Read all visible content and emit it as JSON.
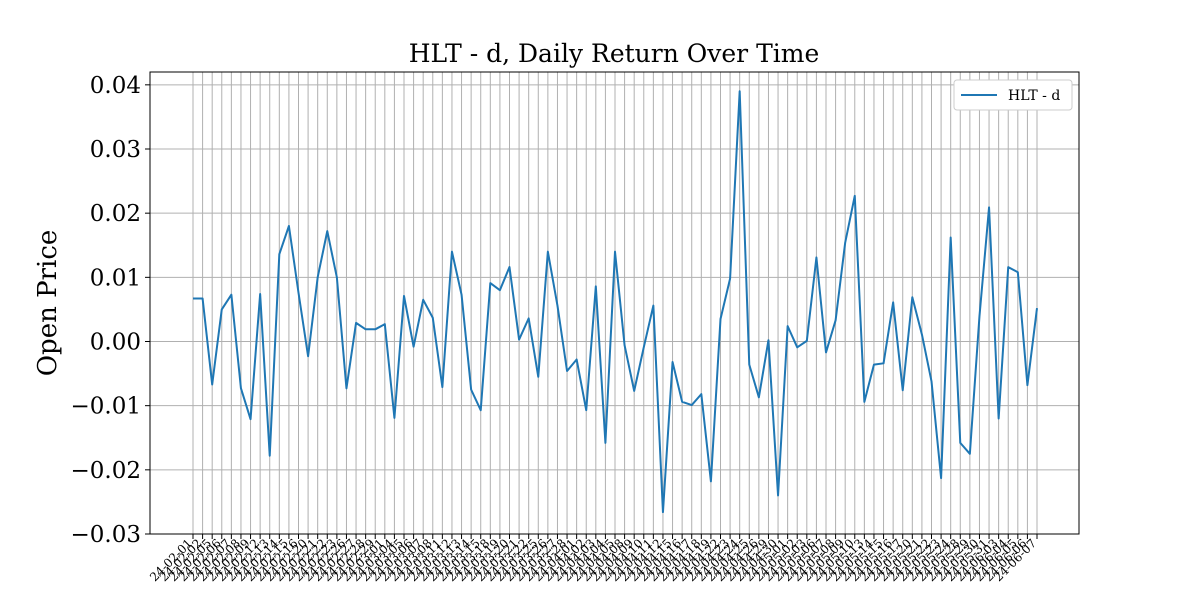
{
  "chart_data": {
    "type": "line",
    "title": "HLT - d, Daily Return Over Time",
    "xlabel": "",
    "ylabel": "Open Price",
    "ylim": [
      -0.03,
      0.042
    ],
    "yticks": [
      -0.03,
      -0.02,
      -0.01,
      0.0,
      0.01,
      0.02,
      0.03,
      0.04
    ],
    "ytick_labels": [
      "−0.03",
      "−0.02",
      "−0.01",
      "0.00",
      "0.01",
      "0.02",
      "0.03",
      "0.04"
    ],
    "grid": true,
    "legend": "top-right",
    "x": [
      "24-02-01",
      "24-02-02",
      "24-02-05",
      "24-02-06",
      "24-02-07",
      "24-02-08",
      "24-02-09",
      "24-02-12",
      "24-02-13",
      "24-02-14",
      "24-02-15",
      "24-02-16",
      "24-02-20",
      "24-02-21",
      "24-02-22",
      "24-02-23",
      "24-02-26",
      "24-02-27",
      "24-02-28",
      "24-02-29",
      "24-03-01",
      "24-03-04",
      "24-03-05",
      "24-03-06",
      "24-03-07",
      "24-03-08",
      "24-03-11",
      "24-03-12",
      "24-03-13",
      "24-03-14",
      "24-03-15",
      "24-03-18",
      "24-03-19",
      "24-03-20",
      "24-03-21",
      "24-03-22",
      "24-03-25",
      "24-03-26",
      "24-03-27",
      "24-03-28",
      "24-04-01",
      "24-04-02",
      "24-04-03",
      "24-04-04",
      "24-04-05",
      "24-04-08",
      "24-04-09",
      "24-04-10",
      "24-04-11",
      "24-04-12",
      "24-04-15",
      "24-04-16",
      "24-04-17",
      "24-04-18",
      "24-04-19",
      "24-04-22",
      "24-04-23",
      "24-04-24",
      "24-04-25",
      "24-04-26",
      "24-04-29",
      "24-04-30",
      "24-05-01",
      "24-05-02",
      "24-05-03",
      "24-05-06",
      "24-05-07",
      "24-05-08",
      "24-05-09",
      "24-05-10",
      "24-05-13",
      "24-05-14",
      "24-05-15",
      "24-05-16",
      "24-05-17",
      "24-05-20",
      "24-05-21",
      "24-05-22",
      "24-05-23",
      "24-05-24",
      "24-05-28",
      "24-05-29",
      "24-05-30",
      "24-05-31",
      "24-06-03",
      "24-06-04",
      "24-06-05",
      "24-06-06",
      "24-06-07"
    ],
    "x_tick_labels": [
      "24-02-01",
      "24-02-02",
      "24-02-05",
      "24-02-06",
      "24-02-07",
      "24-02-08",
      "24-02-09",
      "24-02-12",
      "24-02-13",
      "24-02-14",
      "24-02-15",
      "24-02-16",
      "24-02-20",
      "24-02-21",
      "24-02-22",
      "24-02-23",
      "24-02-26",
      "24-02-27",
      "24-02-28",
      "24-02-29",
      "24-03-01",
      "24-03-04",
      "24-03-05",
      "24-03-06",
      "24-03-07",
      "24-03-08",
      "24-03-11",
      "24-03-12",
      "24-03-13",
      "24-03-14",
      "24-03-15",
      "24-03-18",
      "24-03-19",
      "24-03-20",
      "24-03-21",
      "24-03-22",
      "24-03-25",
      "24-03-26",
      "24-03-27",
      "24-03-28",
      "24-04-01",
      "24-04-02",
      "24-04-03",
      "24-04-04",
      "24-04-05",
      "24-04-08",
      "24-04-09",
      "24-04-10",
      "24-04-11",
      "24-04-12",
      "24-04-15",
      "24-04-16",
      "24-04-17",
      "24-04-18",
      "24-04-19",
      "24-04-22",
      "24-04-23",
      "24-04-24",
      "24-04-25",
      "24-04-26",
      "24-04-29",
      "24-04-30",
      "24-05-01",
      "24-05-02",
      "24-05-03",
      "24-05-06",
      "24-05-07",
      "24-05-08",
      "24-05-09",
      "24-05-10",
      "24-05-13",
      "24-05-14",
      "24-05-15",
      "24-05-16",
      "24-05-17",
      "24-05-20",
      "24-05-21",
      "24-05-22",
      "24-05-23",
      "24-05-24",
      "24-05-28",
      "24-05-29",
      "24-05-30",
      "24-05-31",
      "24-06-03",
      "24-06-04",
      "24-06-05",
      "24-06-06",
      "24-06-07"
    ],
    "series": [
      {
        "name": "HLT - d",
        "color": "#1f77b4",
        "values": [
          0.0067,
          0.0067,
          -0.0067,
          0.005,
          0.0073,
          -0.0073,
          -0.0121,
          0.0074,
          -0.0178,
          0.0136,
          0.018,
          0.0076,
          -0.0023,
          0.01,
          0.0172,
          0.01,
          -0.0073,
          0.0029,
          0.0019,
          0.0019,
          0.0027,
          -0.0119,
          0.0071,
          -0.0008,
          0.0065,
          0.0037,
          -0.0071,
          0.014,
          0.0073,
          -0.0075,
          -0.0107,
          0.0091,
          0.008,
          0.0116,
          0.0003,
          0.0036,
          -0.0055,
          0.014,
          0.0056,
          -0.0046,
          -0.0028,
          -0.0107,
          0.0086,
          -0.0158,
          0.014,
          -0.0006,
          -0.0077,
          -0.0009,
          0.0056,
          -0.0266,
          -0.0032,
          -0.0094,
          -0.0099,
          -0.0082,
          -0.0218,
          0.0035,
          0.0098,
          0.039,
          -0.0036,
          -0.0087,
          0.0002,
          -0.024,
          0.0024,
          -0.0009,
          0.0001,
          0.0131,
          -0.0017,
          0.0033,
          0.0154,
          0.0227,
          -0.0094,
          -0.0036,
          -0.0034,
          0.0061,
          -0.0076,
          0.0069,
          0.0011,
          -0.0062,
          -0.0213,
          0.0162,
          -0.0158,
          -0.0175,
          0.0039,
          0.0209,
          -0.012,
          0.0116,
          0.0108,
          -0.0068,
          0.0052
        ]
      }
    ]
  }
}
